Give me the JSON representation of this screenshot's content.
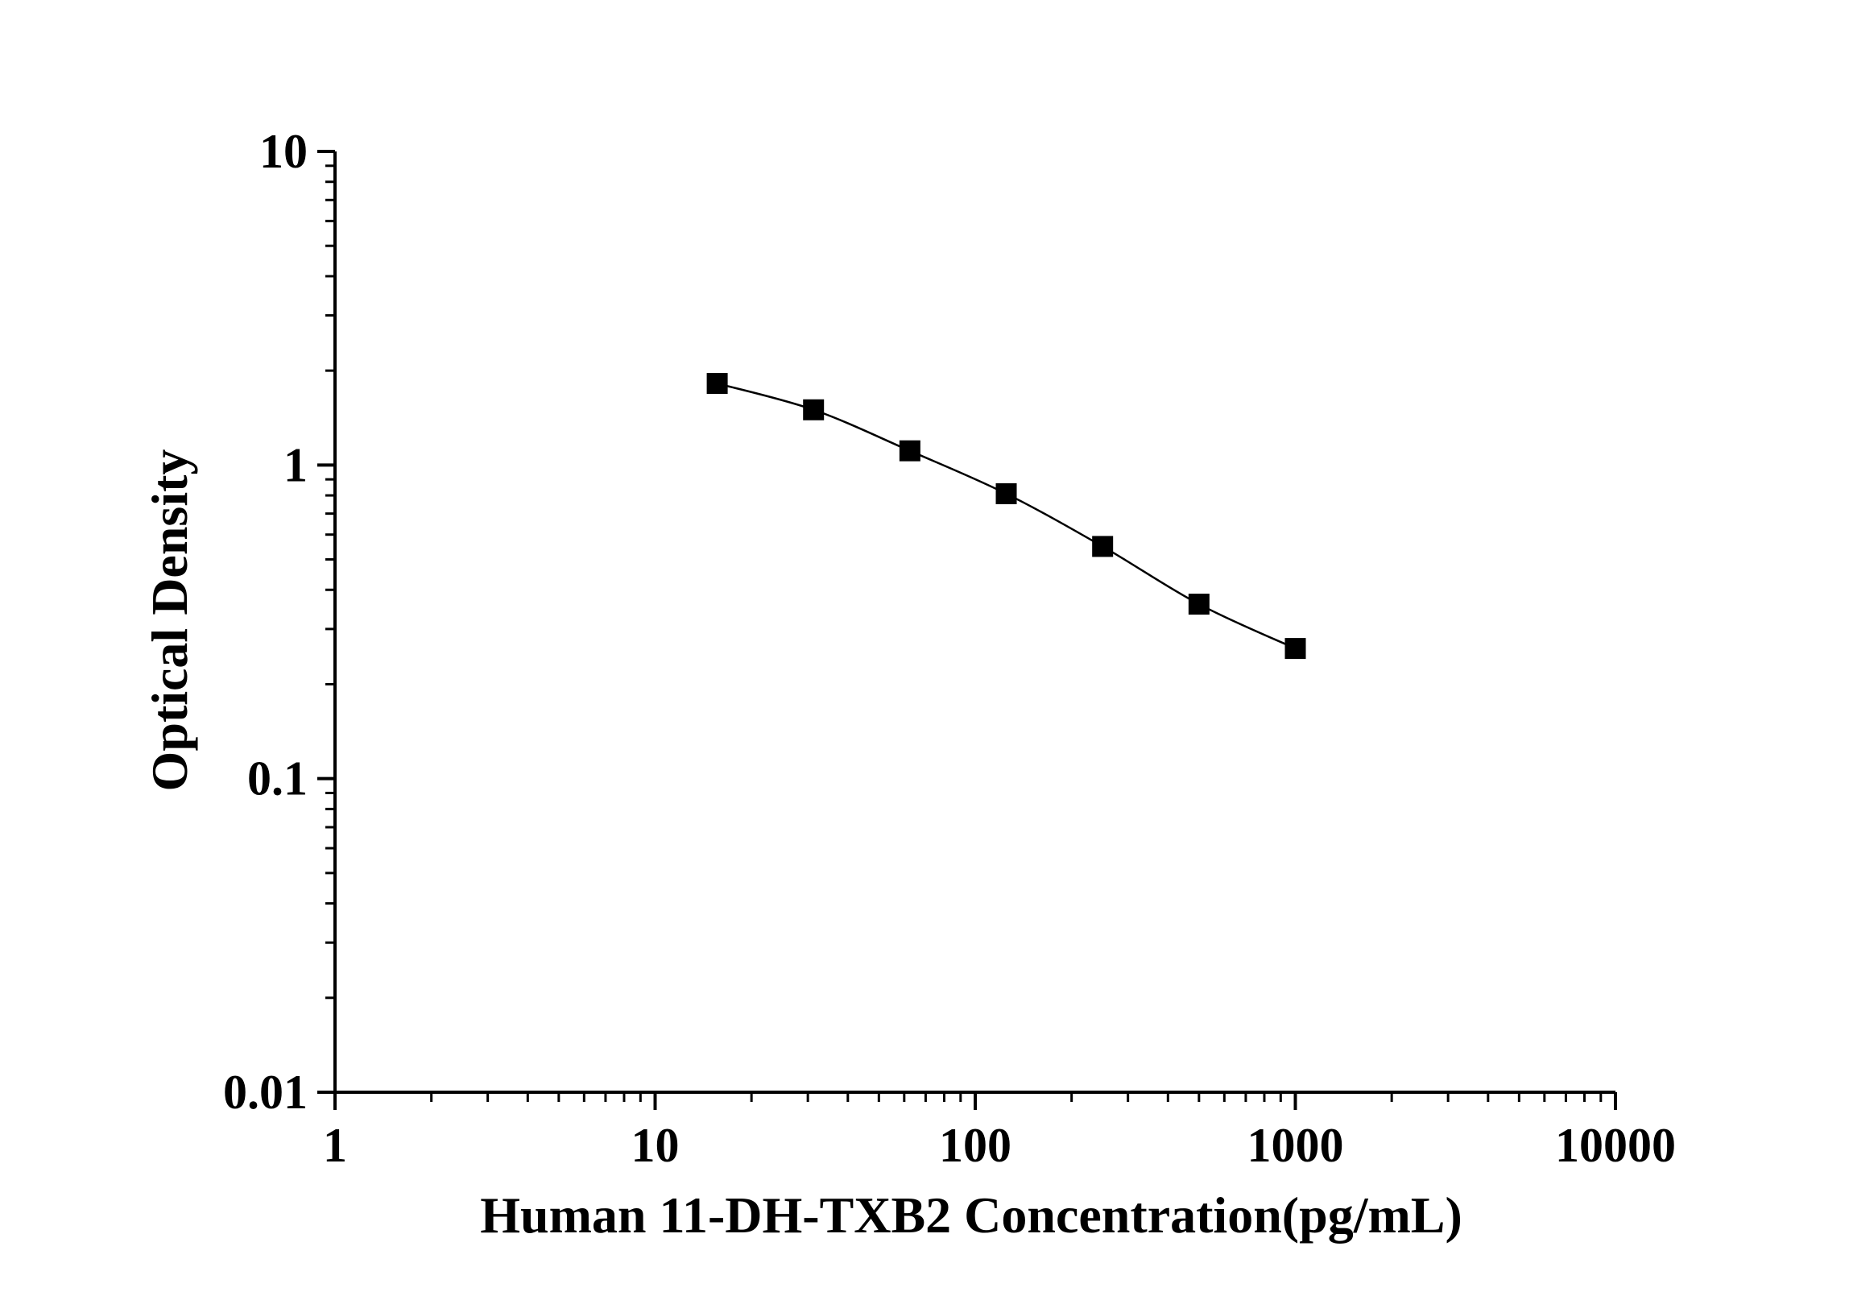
{
  "chart_data": {
    "type": "scatter",
    "title": "",
    "xlabel": "Human 11-DH-TXB2 Concentration(pg/mL)",
    "ylabel": "Optical Density",
    "x_scale": "log",
    "y_scale": "log",
    "xlim": [
      1,
      10000
    ],
    "ylim": [
      0.01,
      10
    ],
    "x_ticks": [
      "1",
      "10",
      "100",
      "1000",
      "10000"
    ],
    "y_ticks": [
      "0.01",
      "0.1",
      "1",
      "10"
    ],
    "grid": false,
    "legend": "none",
    "series": [
      {
        "marker": "square",
        "line": "smooth",
        "color": "#000000",
        "x": [
          15.63,
          31.25,
          62.5,
          125,
          250,
          500,
          1000
        ],
        "y": [
          1.82,
          1.5,
          1.11,
          0.81,
          0.55,
          0.36,
          0.26
        ]
      }
    ]
  }
}
